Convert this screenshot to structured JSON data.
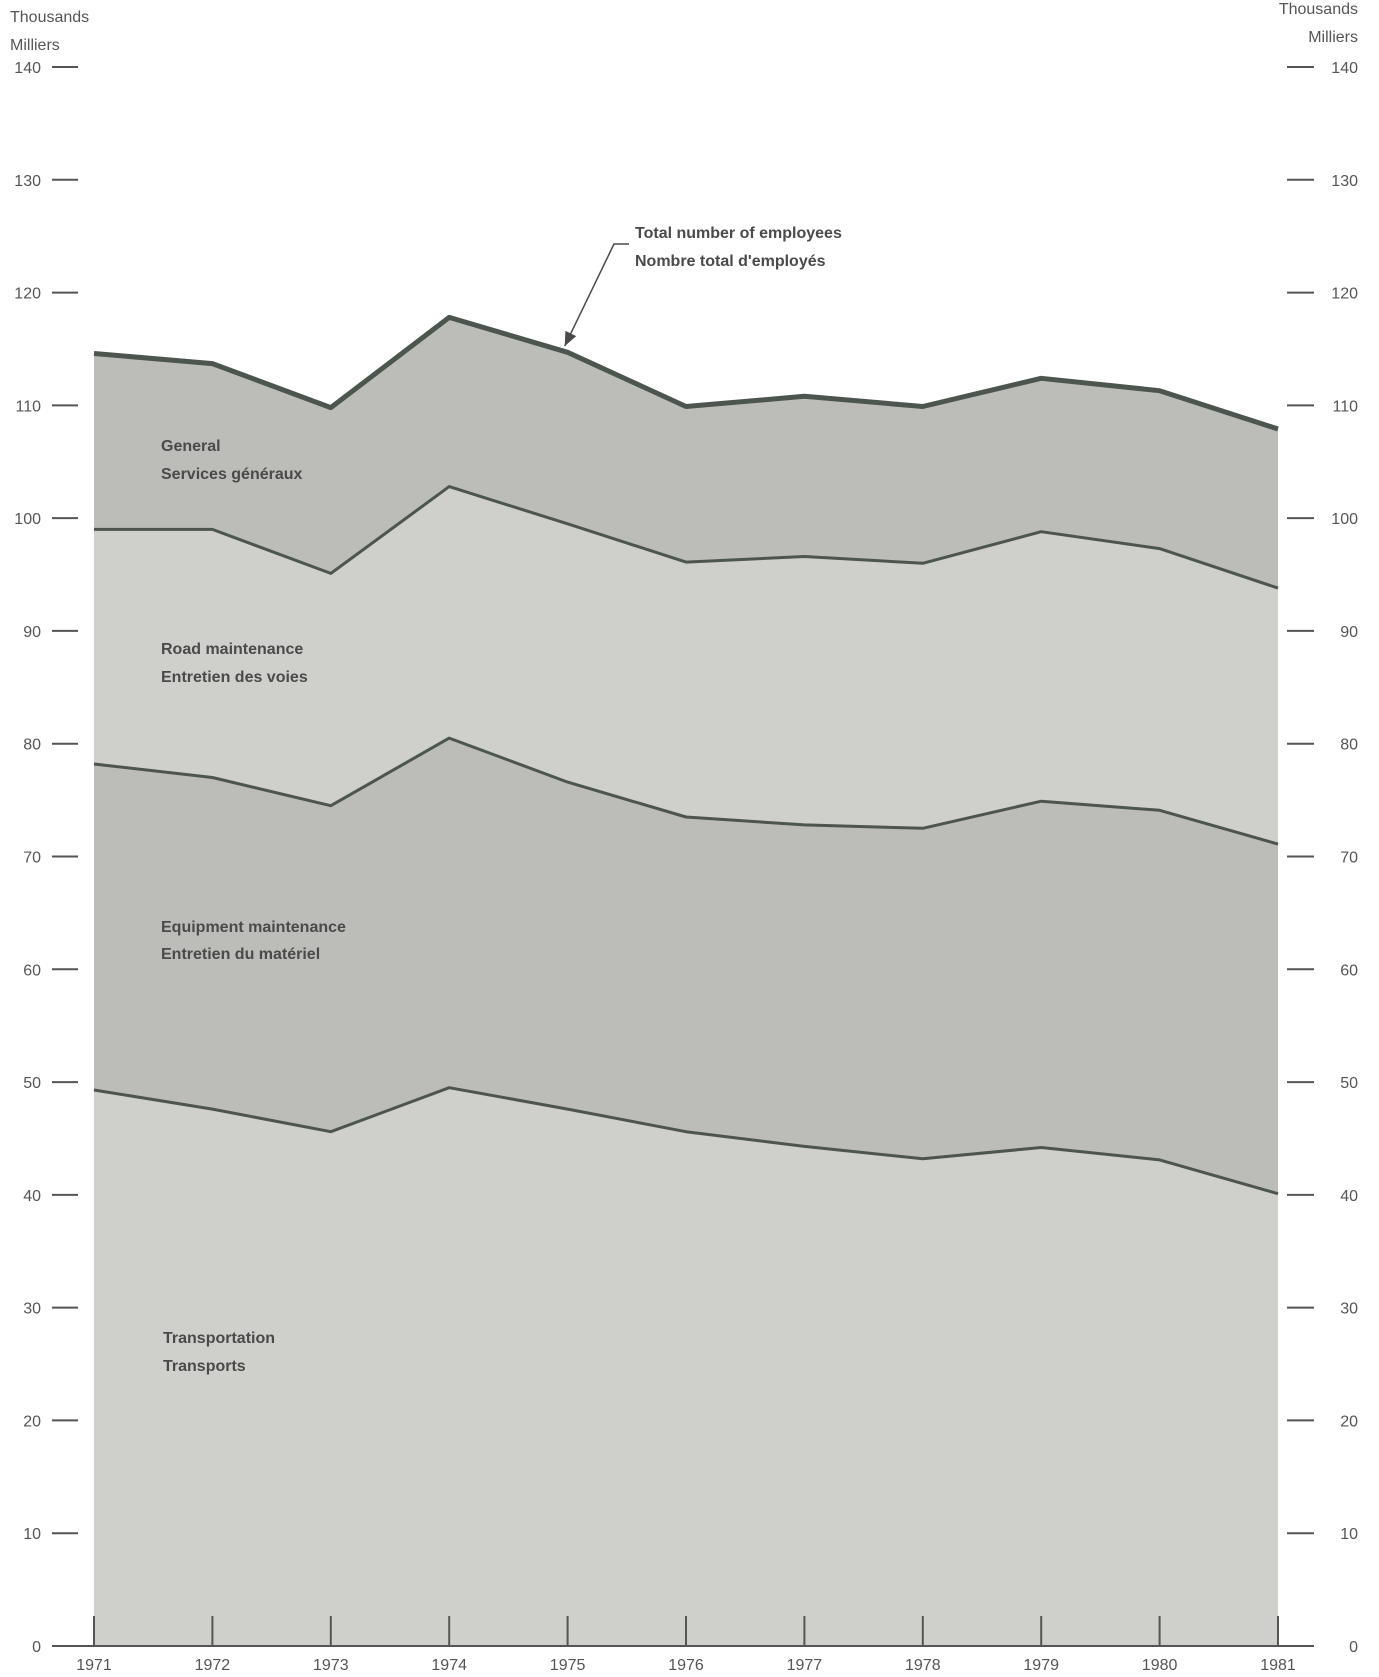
{
  "chart_data": {
    "type": "area",
    "stacked": true,
    "x": [
      "1971",
      "1972",
      "1973",
      "1974",
      "1975",
      "1976",
      "1977",
      "1978",
      "1979",
      "1980",
      "1981"
    ],
    "series": [
      {
        "name": "Transportation",
        "name_fr": "Transports",
        "values": [
          49.3,
          47.6,
          45.6,
          49.5,
          47.6,
          45.6,
          44.3,
          43.2,
          44.2,
          43.1,
          40.1
        ],
        "color": "#cfd0cc"
      },
      {
        "name": "Equipment maintenance",
        "name_fr": "Entretien du matériel",
        "values": [
          28.9,
          29.4,
          28.9,
          31.0,
          29.0,
          27.9,
          28.5,
          29.3,
          30.7,
          31.0,
          31.0
        ],
        "color": "#bcbdb9"
      },
      {
        "name": "Road maintenance",
        "name_fr": "Entretien des voies",
        "values": [
          20.8,
          22.0,
          20.6,
          22.3,
          22.9,
          22.6,
          23.8,
          23.5,
          23.9,
          23.2,
          22.7
        ],
        "color": "#cfd0cc"
      },
      {
        "name": "General",
        "name_fr": "Services généraux",
        "values": [
          15.6,
          14.7,
          14.7,
          15.0,
          15.2,
          13.8,
          14.2,
          13.9,
          13.6,
          14.0,
          14.1
        ],
        "color": "#bcbdb9"
      }
    ],
    "totals": [
      114.6,
      113.7,
      109.8,
      117.8,
      114.7,
      109.9,
      110.8,
      109.9,
      112.4,
      111.3,
      107.9
    ],
    "annotation": {
      "line1": "Total number of employees",
      "line2": "Nombre total d'employés"
    },
    "ylim": [
      0,
      140
    ],
    "yticks": [
      "0",
      "10",
      "20",
      "30",
      "40",
      "50",
      "60",
      "70",
      "80",
      "90",
      "100",
      "110",
      "120",
      "130",
      "140"
    ],
    "ylabel_left": {
      "line1": "Thousands",
      "line2": "Milliers"
    },
    "ylabel_right": {
      "line1": "Thousands",
      "line2": "Milliers"
    },
    "line_color": "#4d554f",
    "grid": false,
    "legend": "inline labels"
  }
}
